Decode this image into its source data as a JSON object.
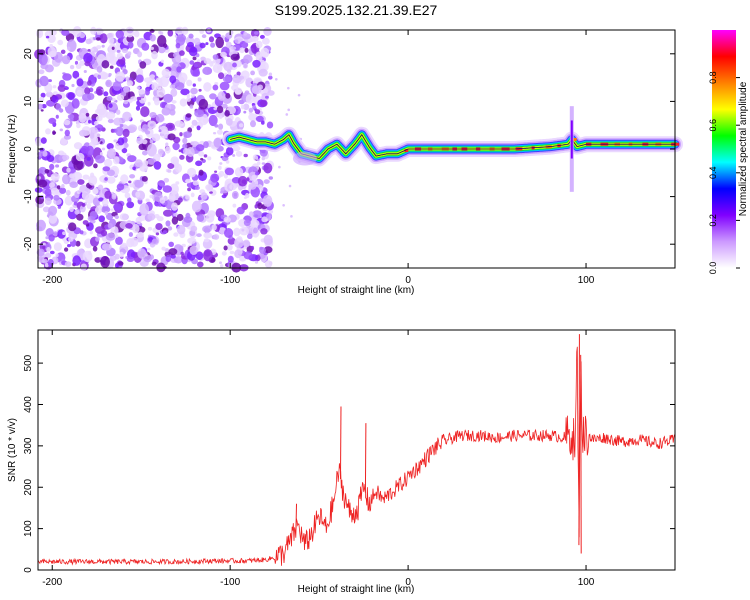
{
  "title": "S199.2025.132.21.39.E27",
  "chart_data": [
    {
      "type": "heatmap",
      "xlabel": "Height of straight line (km)",
      "ylabel": "Frequency (Hz)",
      "xlim": [
        -208,
        150
      ],
      "ylim": [
        -25,
        25
      ],
      "xticks": [
        -200,
        -100,
        0,
        100
      ],
      "xtick_labels": [
        "-200",
        "-100",
        "0",
        "100"
      ],
      "yticks": [
        -20,
        -10,
        0,
        10,
        20
      ],
      "ytick_labels": [
        "-20",
        "-10",
        "0",
        "10",
        "20"
      ],
      "noise_region_x": [
        -208,
        -77
      ],
      "ridge": {
        "description": "Doppler frequency peak ridge vs height",
        "x": [
          -100,
          -95,
          -90,
          -85,
          -80,
          -75,
          -70,
          -67,
          -64,
          -60,
          -55,
          -50,
          -45,
          -40,
          -35,
          -30,
          -26,
          -22,
          -18,
          -12,
          -6,
          0,
          20,
          40,
          60,
          80,
          90,
          92,
          95,
          100,
          120,
          150
        ],
        "y": [
          2,
          2.5,
          2,
          1.5,
          1.5,
          1,
          2,
          3,
          1,
          -1,
          -1.5,
          -2,
          0,
          1,
          -1,
          1,
          3,
          0.5,
          -1.5,
          -1,
          -1,
          0,
          0,
          0,
          0,
          0.5,
          1,
          2,
          0.5,
          1,
          1,
          1
        ]
      },
      "colorbar": {
        "label": "Normalized spectral amplitude",
        "range": [
          0,
          1
        ],
        "ticks": [
          0.0,
          0.2,
          0.4,
          0.6,
          0.8
        ],
        "tick_labels": [
          "0.0",
          "0.2",
          "0.4",
          "0.6",
          "0.8"
        ],
        "colors": [
          "#ffffff",
          "#cc99ff",
          "#8000ff",
          "#0000ff",
          "#00ffff",
          "#00ff00",
          "#ffff00",
          "#ff8000",
          "#ff0000",
          "#ff00ff"
        ]
      }
    },
    {
      "type": "line",
      "xlabel": "Height of straight line (km)",
      "ylabel": "SNR (10 * v/v)",
      "xlim": [
        -208,
        150
      ],
      "ylim": [
        0,
        580
      ],
      "xticks": [
        -200,
        -100,
        0,
        100
      ],
      "xtick_labels": [
        "-200",
        "-100",
        "0",
        "100"
      ],
      "yticks": [
        0,
        100,
        200,
        300,
        400,
        500
      ],
      "ytick_labels": [
        "0",
        "100",
        "200",
        "300",
        "400",
        "500"
      ],
      "series": [
        {
          "name": "SNR",
          "color": "#ee2222",
          "x": [
            -208,
            -190,
            -170,
            -150,
            -130,
            -110,
            -90,
            -80,
            -75,
            -70,
            -66,
            -62,
            -58,
            -54,
            -50,
            -46,
            -42,
            -39,
            -36,
            -32,
            -28,
            -25,
            -22,
            -18,
            -14,
            -10,
            -6,
            -2,
            2,
            6,
            10,
            14,
            18,
            22,
            26,
            30,
            40,
            50,
            60,
            70,
            80,
            88,
            92,
            94,
            95,
            96,
            97,
            98,
            100,
            104,
            110,
            120,
            130,
            140,
            150
          ],
          "y": [
            20,
            20,
            20,
            20,
            20,
            22,
            22,
            25,
            30,
            40,
            70,
            110,
            60,
            90,
            130,
            100,
            160,
            240,
            180,
            130,
            150,
            200,
            160,
            190,
            170,
            185,
            200,
            215,
            235,
            250,
            270,
            290,
            305,
            315,
            320,
            325,
            325,
            320,
            325,
            325,
            325,
            320,
            330,
            300,
            560,
            60,
            520,
            320,
            330,
            315,
            320,
            310,
            315,
            305,
            315
          ],
          "spikes": [
            {
              "x": -63,
              "y": 160
            },
            {
              "x": -38,
              "y": 395
            },
            {
              "x": -24,
              "y": 355
            },
            {
              "x": 96,
              "y": 570
            },
            {
              "x": 97,
              "y": 40
            }
          ]
        }
      ]
    }
  ]
}
